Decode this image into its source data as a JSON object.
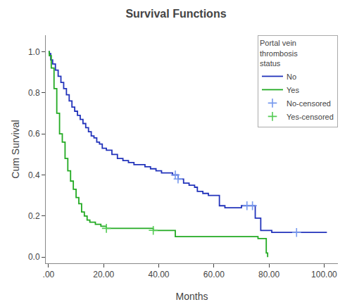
{
  "chart_data": {
    "type": "line",
    "title": "Survival Functions",
    "xlabel": "Months",
    "ylabel": "Cum Survival",
    "legend_title": "Portal vein\nthrombosis\nstatus",
    "legend": "upper right",
    "grid": false,
    "xlim": [
      -1,
      105
    ],
    "ylim": [
      -0.03,
      1.08
    ],
    "xticks": [
      {
        "value": 0,
        "label": ".00"
      },
      {
        "value": 20,
        "label": "20.00"
      },
      {
        "value": 40,
        "label": "40.00"
      },
      {
        "value": 60,
        "label": "60.00"
      },
      {
        "value": 80,
        "label": "80.00"
      },
      {
        "value": 100,
        "label": "100.00"
      }
    ],
    "yticks": [
      {
        "value": 0.0,
        "label": "0.0"
      },
      0.2,
      0.4,
      0.6,
      0.8,
      {
        "value": 1.0,
        "label": "1.0"
      }
    ],
    "series": [
      {
        "name": "No",
        "color": "#2233bb",
        "type": "line",
        "line_style": "step",
        "x": [
          0,
          0.3,
          0.8,
          1.5,
          2.5,
          3.5,
          4.5,
          5.5,
          6.5,
          7.5,
          8.5,
          9.5,
          10.5,
          11.5,
          12.5,
          13.5,
          14.5,
          15.5,
          16.5,
          17.5,
          18.5,
          19.5,
          21,
          23,
          25,
          27,
          29,
          31,
          33,
          35,
          37,
          39,
          41,
          43,
          45,
          47,
          49,
          51,
          53,
          54,
          56,
          58,
          60,
          62,
          64,
          66,
          68,
          70,
          72,
          74,
          75,
          76,
          77,
          79,
          81,
          85,
          90,
          95,
          101
        ],
        "values": [
          1.0,
          0.99,
          0.96,
          0.94,
          0.91,
          0.88,
          0.85,
          0.82,
          0.79,
          0.76,
          0.73,
          0.71,
          0.69,
          0.67,
          0.65,
          0.63,
          0.61,
          0.59,
          0.58,
          0.56,
          0.55,
          0.53,
          0.52,
          0.5,
          0.48,
          0.47,
          0.46,
          0.45,
          0.45,
          0.44,
          0.43,
          0.42,
          0.41,
          0.41,
          0.4,
          0.38,
          0.36,
          0.35,
          0.34,
          0.32,
          0.31,
          0.3,
          0.3,
          0.25,
          0.24,
          0.24,
          0.24,
          0.25,
          0.25,
          0.25,
          0.19,
          0.19,
          0.13,
          0.13,
          0.12,
          0.12,
          0.12,
          0.12,
          0.12
        ]
      },
      {
        "name": "Yes",
        "color": "#22aa22",
        "type": "line",
        "line_style": "step",
        "x": [
          0,
          0.3,
          1,
          2,
          3,
          4,
          5,
          6,
          7,
          8,
          9,
          10,
          11,
          12,
          13,
          14,
          15,
          17,
          19,
          21,
          23,
          26,
          29,
          32,
          35,
          38,
          40,
          43,
          46,
          48,
          50,
          53,
          56,
          59,
          62,
          65,
          68,
          71,
          74,
          76,
          77,
          78,
          79,
          79.5
        ],
        "values": [
          1.0,
          0.98,
          0.92,
          0.82,
          0.7,
          0.6,
          0.56,
          0.48,
          0.42,
          0.37,
          0.33,
          0.29,
          0.26,
          0.22,
          0.2,
          0.18,
          0.17,
          0.16,
          0.15,
          0.14,
          0.14,
          0.14,
          0.14,
          0.14,
          0.14,
          0.13,
          0.13,
          0.13,
          0.1,
          0.1,
          0.1,
          0.1,
          0.1,
          0.1,
          0.1,
          0.1,
          0.1,
          0.1,
          0.1,
          0.09,
          0.09,
          0.09,
          0.02,
          0.0
        ]
      },
      {
        "name": "No-censored",
        "color": "#7799ee",
        "type": "scatter",
        "marker": "plus",
        "x": [
          46,
          47,
          72,
          74,
          90
        ],
        "values": [
          0.4,
          0.38,
          0.25,
          0.25,
          0.12
        ]
      },
      {
        "name": "Yes-censored",
        "color": "#55cc55",
        "type": "scatter",
        "marker": "plus",
        "x": [
          21,
          38
        ],
        "values": [
          0.14,
          0.13
        ]
      }
    ]
  }
}
